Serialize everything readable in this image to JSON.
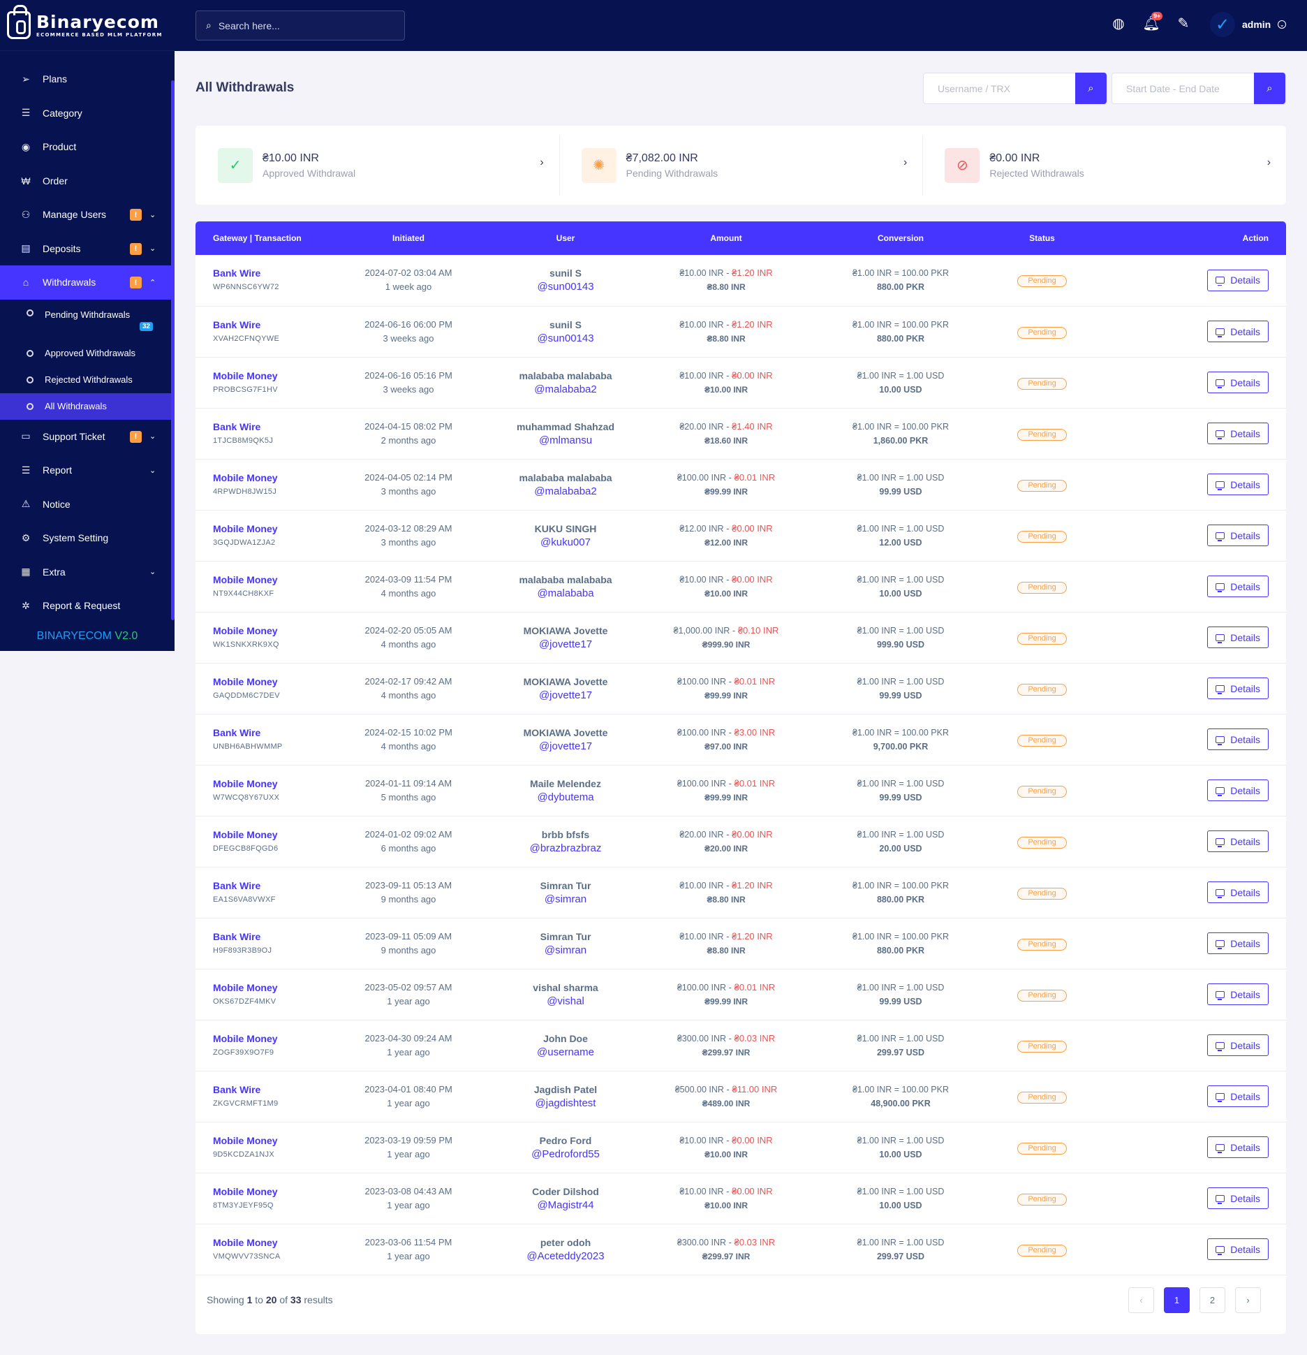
{
  "brand": {
    "name": "Binaryecom",
    "tagline": "ECOMMERCE BASED MLM PLATFORM"
  },
  "sidebar": {
    "items": [
      {
        "label": "Plans",
        "icon": "send-icon"
      },
      {
        "label": "Category",
        "icon": "list-icon"
      },
      {
        "label": "Product",
        "icon": "product-icon"
      },
      {
        "label": "Order",
        "icon": "cart-icon"
      },
      {
        "label": "Manage Users",
        "icon": "users-icon",
        "badge": "!"
      },
      {
        "label": "Deposits",
        "icon": "deposit-icon",
        "badge": "!"
      },
      {
        "label": "Withdrawals",
        "icon": "bank-icon",
        "badge": "!"
      },
      {
        "label": "Support Ticket",
        "icon": "ticket-icon",
        "badge": "!"
      },
      {
        "label": "Report",
        "icon": "report-icon"
      },
      {
        "label": "Notice",
        "icon": "warning-icon"
      },
      {
        "label": "System Setting",
        "icon": "settings-icon"
      },
      {
        "label": "Extra",
        "icon": "extra-icon"
      },
      {
        "label": "Report & Request",
        "icon": "bug-icon"
      }
    ],
    "withdrawals_sub": [
      {
        "label": "Pending Withdrawals",
        "badge": "32"
      },
      {
        "label": "Approved Withdrawals"
      },
      {
        "label": "Rejected Withdrawals"
      },
      {
        "label": "All Withdrawals"
      }
    ],
    "version_name": "BINARYECOM",
    "version_num": "V2.0"
  },
  "topbar": {
    "search_placeholder": "Search here...",
    "notification_badge": "9+",
    "admin_name": "admin"
  },
  "page": {
    "title": "All Withdrawals",
    "filter_user_placeholder": "Username / TRX",
    "filter_date_placeholder": "Start Date - End Date"
  },
  "summary": [
    {
      "amount": "₴10.00 INR",
      "label": "Approved Withdrawal",
      "color": "#28c76f"
    },
    {
      "amount": "₴7,082.00 INR",
      "label": "Pending Withdrawals",
      "color": "#ff9f43"
    },
    {
      "amount": "₴0.00 INR",
      "label": "Rejected Withdrawals",
      "color": "#ea5455"
    }
  ],
  "table": {
    "headers": [
      "Gateway | Transaction",
      "Initiated",
      "User",
      "Amount",
      "Conversion",
      "Status",
      "Action"
    ],
    "status_label": "Pending",
    "action_label": "Details",
    "rows": [
      {
        "gateway": "Bank Wire",
        "trx": "WP6NNSC6YW72",
        "date": "2024-07-02 03:04 AM",
        "ago": "1 week ago",
        "name": "sunil S",
        "username": "@sun00143",
        "amount": "₴10.00 INR",
        "charge": "₴1.20 INR",
        "net": "₴8.80 INR",
        "rate": "₴1.00 INR = 100.00 PKR",
        "converted": "880.00 PKR"
      },
      {
        "gateway": "Bank Wire",
        "trx": "XVAH2CFNQYWE",
        "date": "2024-06-16 06:00 PM",
        "ago": "3 weeks ago",
        "name": "sunil S",
        "username": "@sun00143",
        "amount": "₴10.00 INR",
        "charge": "₴1.20 INR",
        "net": "₴8.80 INR",
        "rate": "₴1.00 INR = 100.00 PKR",
        "converted": "880.00 PKR"
      },
      {
        "gateway": "Mobile Money",
        "trx": "PROBCSG7F1HV",
        "date": "2024-06-16 05:16 PM",
        "ago": "3 weeks ago",
        "name": "malababa malababa",
        "username": "@malababa2",
        "amount": "₴10.00 INR",
        "charge": "₴0.00 INR",
        "net": "₴10.00 INR",
        "rate": "₴1.00 INR = 1.00 USD",
        "converted": "10.00 USD"
      },
      {
        "gateway": "Bank Wire",
        "trx": "1TJCB8M9QK5J",
        "date": "2024-04-15 08:02 PM",
        "ago": "2 months ago",
        "name": "muhammad Shahzad",
        "username": "@mlmansu",
        "amount": "₴20.00 INR",
        "charge": "₴1.40 INR",
        "net": "₴18.60 INR",
        "rate": "₴1.00 INR = 100.00 PKR",
        "converted": "1,860.00 PKR"
      },
      {
        "gateway": "Mobile Money",
        "trx": "4RPWDH8JW15J",
        "date": "2024-04-05 02:14 PM",
        "ago": "3 months ago",
        "name": "malababa malababa",
        "username": "@malababa2",
        "amount": "₴100.00 INR",
        "charge": "₴0.01 INR",
        "net": "₴99.99 INR",
        "rate": "₴1.00 INR = 1.00 USD",
        "converted": "99.99 USD"
      },
      {
        "gateway": "Mobile Money",
        "trx": "3GQJDWA1ZJA2",
        "date": "2024-03-12 08:29 AM",
        "ago": "3 months ago",
        "name": "KUKU SINGH",
        "username": "@kuku007",
        "amount": "₴12.00 INR",
        "charge": "₴0.00 INR",
        "net": "₴12.00 INR",
        "rate": "₴1.00 INR = 1.00 USD",
        "converted": "12.00 USD"
      },
      {
        "gateway": "Mobile Money",
        "trx": "NT9X44CH8KXF",
        "date": "2024-03-09 11:54 PM",
        "ago": "4 months ago",
        "name": "malababa malababa",
        "username": "@malababa",
        "amount": "₴10.00 INR",
        "charge": "₴0.00 INR",
        "net": "₴10.00 INR",
        "rate": "₴1.00 INR = 1.00 USD",
        "converted": "10.00 USD"
      },
      {
        "gateway": "Mobile Money",
        "trx": "WK1SNKXRK9XQ",
        "date": "2024-02-20 05:05 AM",
        "ago": "4 months ago",
        "name": "MOKIAWA Jovette",
        "username": "@jovette17",
        "amount": "₴1,000.00 INR",
        "charge": "₴0.10 INR",
        "net": "₴999.90 INR",
        "rate": "₴1.00 INR = 1.00 USD",
        "converted": "999.90 USD"
      },
      {
        "gateway": "Mobile Money",
        "trx": "GAQDDM6C7DEV",
        "date": "2024-02-17 09:42 AM",
        "ago": "4 months ago",
        "name": "MOKIAWA Jovette",
        "username": "@jovette17",
        "amount": "₴100.00 INR",
        "charge": "₴0.01 INR",
        "net": "₴99.99 INR",
        "rate": "₴1.00 INR = 1.00 USD",
        "converted": "99.99 USD"
      },
      {
        "gateway": "Bank Wire",
        "trx": "UNBH6ABHWMMP",
        "date": "2024-02-15 10:02 PM",
        "ago": "4 months ago",
        "name": "MOKIAWA Jovette",
        "username": "@jovette17",
        "amount": "₴100.00 INR",
        "charge": "₴3.00 INR",
        "net": "₴97.00 INR",
        "rate": "₴1.00 INR = 100.00 PKR",
        "converted": "9,700.00 PKR"
      },
      {
        "gateway": "Mobile Money",
        "trx": "W7WCQ8Y67UXX",
        "date": "2024-01-11 09:14 AM",
        "ago": "5 months ago",
        "name": "Maile Melendez",
        "username": "@dybutema",
        "amount": "₴100.00 INR",
        "charge": "₴0.01 INR",
        "net": "₴99.99 INR",
        "rate": "₴1.00 INR = 1.00 USD",
        "converted": "99.99 USD"
      },
      {
        "gateway": "Mobile Money",
        "trx": "DFEGCB8FQGD6",
        "date": "2024-01-02 09:02 AM",
        "ago": "6 months ago",
        "name": "brbb bfsfs",
        "username": "@brazbrazbraz",
        "amount": "₴20.00 INR",
        "charge": "₴0.00 INR",
        "net": "₴20.00 INR",
        "rate": "₴1.00 INR = 1.00 USD",
        "converted": "20.00 USD"
      },
      {
        "gateway": "Bank Wire",
        "trx": "EA1S6VA8VWXF",
        "date": "2023-09-11 05:13 AM",
        "ago": "9 months ago",
        "name": "Simran Tur",
        "username": "@simran",
        "amount": "₴10.00 INR",
        "charge": "₴1.20 INR",
        "net": "₴8.80 INR",
        "rate": "₴1.00 INR = 100.00 PKR",
        "converted": "880.00 PKR"
      },
      {
        "gateway": "Bank Wire",
        "trx": "H9F893R3B9OJ",
        "date": "2023-09-11 05:09 AM",
        "ago": "9 months ago",
        "name": "Simran Tur",
        "username": "@simran",
        "amount": "₴10.00 INR",
        "charge": "₴1.20 INR",
        "net": "₴8.80 INR",
        "rate": "₴1.00 INR = 100.00 PKR",
        "converted": "880.00 PKR"
      },
      {
        "gateway": "Mobile Money",
        "trx": "OKS67DZF4MKV",
        "date": "2023-05-02 09:57 AM",
        "ago": "1 year ago",
        "name": "vishal sharma",
        "username": "@vishal",
        "amount": "₴100.00 INR",
        "charge": "₴0.01 INR",
        "net": "₴99.99 INR",
        "rate": "₴1.00 INR = 1.00 USD",
        "converted": "99.99 USD"
      },
      {
        "gateway": "Mobile Money",
        "trx": "ZOGF39X9O7F9",
        "date": "2023-04-30 09:24 AM",
        "ago": "1 year ago",
        "name": "John Doe",
        "username": "@username",
        "amount": "₴300.00 INR",
        "charge": "₴0.03 INR",
        "net": "₴299.97 INR",
        "rate": "₴1.00 INR = 1.00 USD",
        "converted": "299.97 USD"
      },
      {
        "gateway": "Bank Wire",
        "trx": "ZKGVCRMFT1M9",
        "date": "2023-04-01 08:40 PM",
        "ago": "1 year ago",
        "name": "Jagdish Patel",
        "username": "@jagdishtest",
        "amount": "₴500.00 INR",
        "charge": "₴11.00 INR",
        "net": "₴489.00 INR",
        "rate": "₴1.00 INR = 100.00 PKR",
        "converted": "48,900.00 PKR"
      },
      {
        "gateway": "Mobile Money",
        "trx": "9D5KCDZA1NJX",
        "date": "2023-03-19 09:59 PM",
        "ago": "1 year ago",
        "name": "Pedro Ford",
        "username": "@Pedroford55",
        "amount": "₴10.00 INR",
        "charge": "₴0.00 INR",
        "net": "₴10.00 INR",
        "rate": "₴1.00 INR = 1.00 USD",
        "converted": "10.00 USD"
      },
      {
        "gateway": "Mobile Money",
        "trx": "8TM3YJEYF95Q",
        "date": "2023-03-08 04:43 AM",
        "ago": "1 year ago",
        "name": "Coder Dilshod",
        "username": "@Magistr44",
        "amount": "₴10.00 INR",
        "charge": "₴0.00 INR",
        "net": "₴10.00 INR",
        "rate": "₴1.00 INR = 1.00 USD",
        "converted": "10.00 USD"
      },
      {
        "gateway": "Mobile Money",
        "trx": "VMQWVV73SNCA",
        "date": "2023-03-06 11:54 PM",
        "ago": "1 year ago",
        "name": "peter odoh",
        "username": "@Aceteddy2023",
        "amount": "₴300.00 INR",
        "charge": "₴0.03 INR",
        "net": "₴299.97 INR",
        "rate": "₴1.00 INR = 1.00 USD",
        "converted": "299.97 USD"
      }
    ]
  },
  "pagination": {
    "showing_prefix": "Showing",
    "from": "1",
    "to_word": "to",
    "to": "20",
    "of_word": "of",
    "total": "33",
    "results_word": "results",
    "prev": "‹",
    "pages": [
      "1",
      "2"
    ],
    "next": "›"
  }
}
